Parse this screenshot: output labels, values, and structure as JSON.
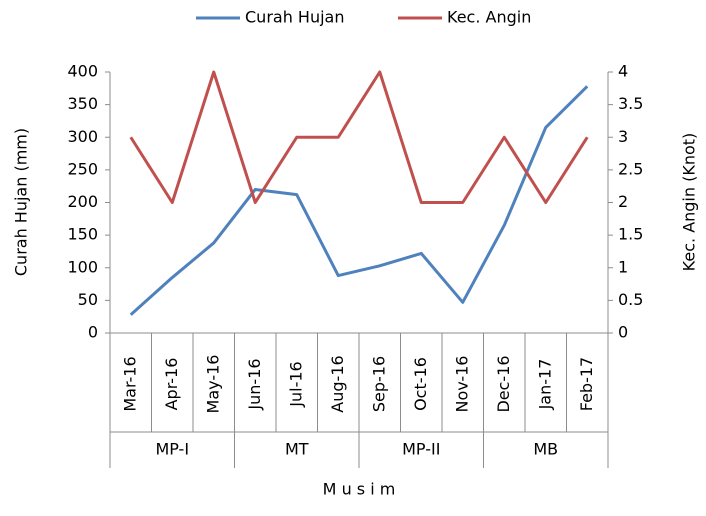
{
  "chart_data": {
    "type": "line",
    "categories": [
      "Mar-16",
      "Apr-16",
      "May-16",
      "Jun-16",
      "Jul-16",
      "Aug-16",
      "Sep-16",
      "Oct-16",
      "Nov-16",
      "Dec-16",
      "Jan-17",
      "Feb-17"
    ],
    "groups": [
      "MP-I",
      "MT",
      "MP-II",
      "MB"
    ],
    "x_label": "M u s i m",
    "y_label": "Curah Hujan (mm)",
    "y2_label": "Kec. Angin (Knot)",
    "series": [
      {
        "name": "Curah Hujan",
        "color": "#4f81bd",
        "values": [
          28,
          85,
          138,
          220,
          212,
          88,
          103,
          122,
          47,
          165,
          315,
          378
        ]
      },
      {
        "name": "Kec. Angin",
        "color": "#c0504d",
        "axis": "y2",
        "values": [
          3,
          2,
          4,
          2,
          3,
          3,
          4,
          2,
          2,
          3,
          2,
          3
        ]
      }
    ],
    "ylim": [
      0,
      400
    ],
    "yticks": [
      0,
      50,
      100,
      150,
      200,
      250,
      300,
      350,
      400
    ],
    "y2lim": [
      0,
      4
    ],
    "y2ticks": [
      0,
      0.5,
      1,
      1.5,
      2,
      2.5,
      3,
      3.5,
      4
    ],
    "grid": false,
    "legend": "top"
  }
}
